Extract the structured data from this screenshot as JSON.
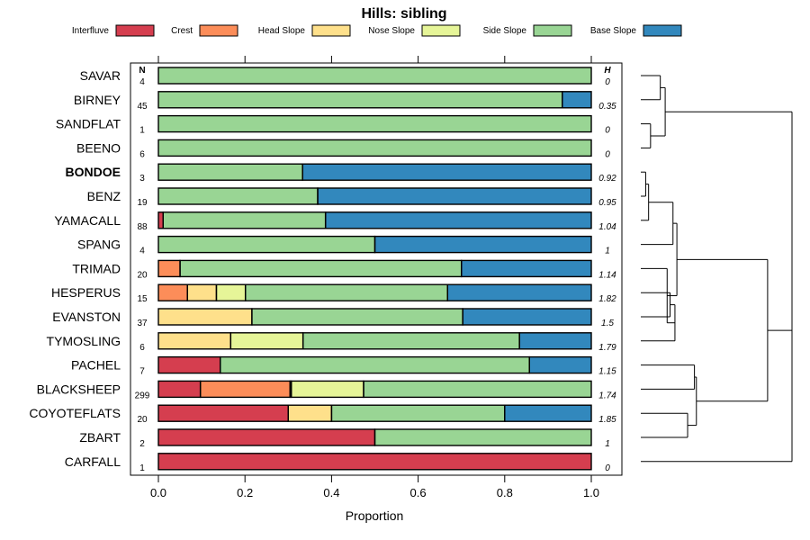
{
  "chart_data": {
    "type": "bar",
    "stacked": true,
    "orientation": "horizontal",
    "title": "Hills: sibling",
    "xlabel": "Proportion",
    "ylabel": "",
    "xlim": [
      0,
      1
    ],
    "xticks": [
      "0.0",
      "0.2",
      "0.4",
      "0.6",
      "0.8",
      "1.0"
    ],
    "n_header": "N",
    "h_header": "H",
    "highlight": "BONDOE",
    "legend_position": "top",
    "series": [
      {
        "name": "Interfluve",
        "color": "#d53e4f"
      },
      {
        "name": "Crest",
        "color": "#fc8d59"
      },
      {
        "name": "Head Slope",
        "color": "#fee08b"
      },
      {
        "name": "Nose Slope",
        "color": "#e6f598"
      },
      {
        "name": "Side Slope",
        "color": "#99d594"
      },
      {
        "name": "Base Slope",
        "color": "#3288bd"
      }
    ],
    "categories": [
      "SAVAR",
      "BIRNEY",
      "SANDFLAT",
      "BEENO",
      "BONDOE",
      "BENZ",
      "YAMACALL",
      "SPANG",
      "TRIMAD",
      "HESPERUS",
      "EVANSTON",
      "TYMOSLING",
      "PACHEL",
      "BLACKSHEEP",
      "COYOTEFLATS",
      "ZBART",
      "CARFALL"
    ],
    "n": [
      "4",
      "45",
      "1",
      "6",
      "3",
      "19",
      "88",
      "4",
      "20",
      "15",
      "37",
      "6",
      "7",
      "299",
      "20",
      "2",
      "1"
    ],
    "h": [
      "0",
      "0.35",
      "0",
      "0",
      "0.92",
      "0.95",
      "1.04",
      "1",
      "1.14",
      "1.82",
      "1.5",
      "1.79",
      "1.15",
      "1.74",
      "1.85",
      "1",
      "0"
    ],
    "values": [
      [
        0,
        0,
        0,
        0,
        1.0,
        0
      ],
      [
        0,
        0,
        0,
        0,
        0.933,
        0.067
      ],
      [
        0,
        0,
        0,
        0,
        1.0,
        0
      ],
      [
        0,
        0,
        0,
        0,
        1.0,
        0
      ],
      [
        0,
        0,
        0,
        0,
        0.333,
        0.667
      ],
      [
        0,
        0,
        0,
        0,
        0.368,
        0.632
      ],
      [
        0.011,
        0,
        0,
        0,
        0.375,
        0.614
      ],
      [
        0,
        0,
        0,
        0,
        0.5,
        0.5
      ],
      [
        0,
        0.05,
        0,
        0,
        0.65,
        0.3
      ],
      [
        0,
        0.067,
        0.067,
        0.067,
        0.467,
        0.332
      ],
      [
        0,
        0,
        0.216,
        0,
        0.487,
        0.297
      ],
      [
        0,
        0,
        0.167,
        0.167,
        0.5,
        0.166
      ],
      [
        0.143,
        0,
        0,
        0,
        0.714,
        0.143
      ],
      [
        0.097,
        0.207,
        0.003,
        0.167,
        0.526,
        0
      ],
      [
        0.3,
        0,
        0.1,
        0,
        0.4,
        0.2
      ],
      [
        0.5,
        0,
        0,
        0,
        0.5,
        0
      ],
      [
        1.0,
        0,
        0,
        0,
        0,
        0
      ]
    ],
    "dendrogram": {
      "type": "hierarchical clustering",
      "leaf_order": [
        "SAVAR",
        "BIRNEY",
        "SANDFLAT",
        "BEENO",
        "BONDOE",
        "BENZ",
        "YAMACALL",
        "SPANG",
        "TRIMAD",
        "HESPERUS",
        "EVANSTON",
        "TYMOSLING",
        "PACHEL",
        "BLACKSHEEP",
        "COYOTEFLATS",
        "ZBART",
        "CARFALL"
      ],
      "merges": [
        [
          0,
          1,
          0.2
        ],
        [
          2,
          3,
          0.1
        ],
        [
          -1,
          -2,
          0.25
        ],
        [
          4,
          5,
          0.05
        ],
        [
          -4,
          6,
          0.08
        ],
        [
          -5,
          7,
          0.33
        ],
        [
          9,
          10,
          0.3
        ],
        [
          -7,
          11,
          0.35
        ],
        [
          8,
          -8,
          0.27
        ],
        [
          -6,
          -9,
          0.37
        ],
        [
          12,
          13,
          0.55
        ],
        [
          14,
          15,
          0.48
        ],
        [
          -11,
          -12,
          0.57
        ],
        [
          -10,
          -13,
          1.3
        ],
        [
          -3,
          -14,
          1.55
        ],
        [
          -15,
          16,
          1.55
        ]
      ]
    }
  }
}
